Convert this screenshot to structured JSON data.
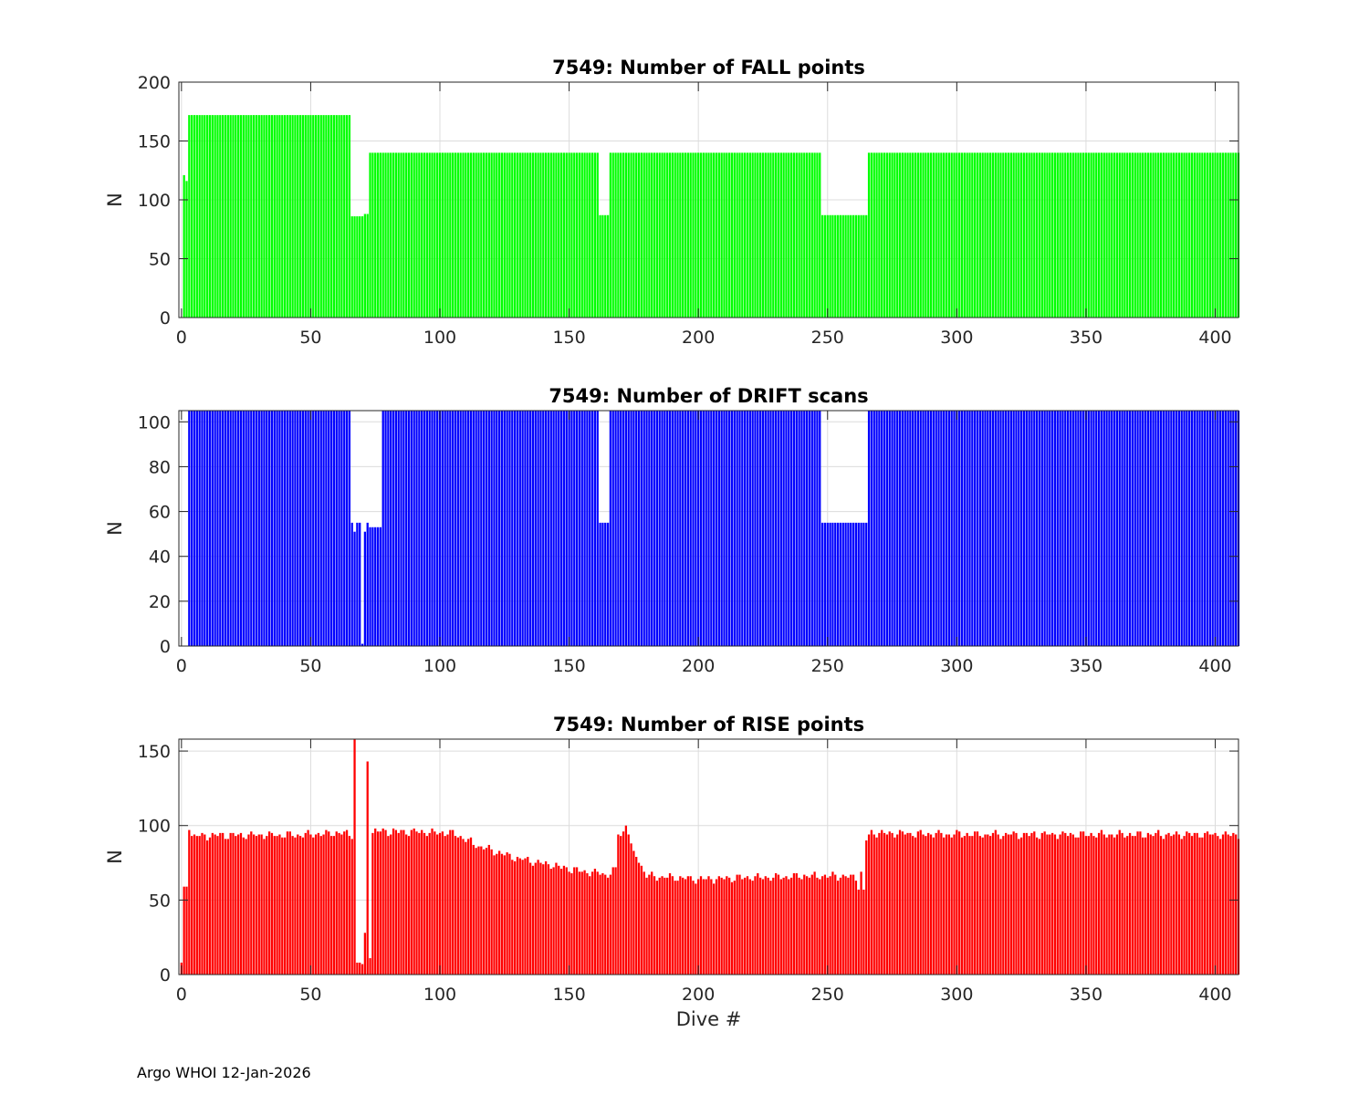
{
  "footer": "Argo WHOI 12-Jan-2026",
  "chart_data": [
    {
      "type": "bar",
      "title": "7549: Number of FALL points",
      "ylabel": "N",
      "xlabel": "",
      "color": "#00ff00",
      "xlim": [
        -1,
        409
      ],
      "ylim": [
        0,
        200
      ],
      "xticks": [
        0,
        50,
        100,
        150,
        200,
        250,
        300,
        350,
        400
      ],
      "yticks": [
        0,
        50,
        100,
        150,
        200
      ],
      "grid": true,
      "x_start": 1,
      "segments": [
        {
          "from": 1,
          "to": 1,
          "value": 121
        },
        {
          "from": 2,
          "to": 2,
          "value": 116
        },
        {
          "from": 3,
          "to": 65,
          "value": 172
        },
        {
          "from": 66,
          "to": 70,
          "value": 86
        },
        {
          "from": 71,
          "to": 72,
          "value": 88
        },
        {
          "from": 73,
          "to": 161,
          "value": 140
        },
        {
          "from": 162,
          "to": 165,
          "value": 87
        },
        {
          "from": 166,
          "to": 247,
          "value": 140
        },
        {
          "from": 248,
          "to": 265,
          "value": 87
        },
        {
          "from": 266,
          "to": 409,
          "value": 140
        }
      ]
    },
    {
      "type": "bar",
      "title": "7549: Number of DRIFT scans",
      "ylabel": "N",
      "xlabel": "",
      "color": "#0000ff",
      "xlim": [
        -1,
        409
      ],
      "ylim": [
        0,
        105
      ],
      "xticks": [
        0,
        50,
        100,
        150,
        200,
        250,
        300,
        350,
        400
      ],
      "yticks": [
        0,
        20,
        40,
        60,
        80,
        100
      ],
      "grid": true,
      "x_start": 3,
      "segments": [
        {
          "from": 3,
          "to": 65,
          "value": 105
        },
        {
          "from": 66,
          "to": 66,
          "value": 55
        },
        {
          "from": 67,
          "to": 67,
          "value": 51
        },
        {
          "from": 68,
          "to": 69,
          "value": 55
        },
        {
          "from": 70,
          "to": 70,
          "value": 1
        },
        {
          "from": 71,
          "to": 71,
          "value": 51
        },
        {
          "from": 72,
          "to": 72,
          "value": 55
        },
        {
          "from": 73,
          "to": 77,
          "value": 53
        },
        {
          "from": 78,
          "to": 161,
          "value": 105
        },
        {
          "from": 162,
          "to": 165,
          "value": 55
        },
        {
          "from": 166,
          "to": 247,
          "value": 105
        },
        {
          "from": 248,
          "to": 265,
          "value": 55
        },
        {
          "from": 266,
          "to": 409,
          "value": 105
        }
      ]
    },
    {
      "type": "bar",
      "title": "7549: Number of RISE points",
      "ylabel": "N",
      "xlabel": "Dive #",
      "color": "#ff0000",
      "xlim": [
        -1,
        409
      ],
      "ylim": [
        0,
        158
      ],
      "xticks": [
        0,
        50,
        100,
        150,
        200,
        250,
        300,
        350,
        400
      ],
      "yticks": [
        0,
        50,
        100,
        150
      ],
      "grid": true,
      "x_start": 1,
      "points": [
        [
          0,
          8
        ],
        [
          1,
          59
        ],
        [
          2,
          59
        ],
        [
          3,
          97
        ],
        [
          67,
          158
        ],
        [
          68,
          8
        ],
        [
          69,
          8
        ],
        [
          70,
          7
        ],
        [
          71,
          28
        ],
        [
          72,
          143
        ],
        [
          73,
          11
        ],
        [
          169,
          94
        ],
        [
          170,
          93
        ],
        [
          171,
          96
        ],
        [
          172,
          100
        ],
        [
          173,
          94
        ],
        [
          174,
          88
        ],
        [
          175,
          83
        ],
        [
          262,
          57
        ],
        [
          263,
          69
        ],
        [
          264,
          57
        ],
        [
          265,
          90
        ],
        [
          266,
          94
        ]
      ],
      "trend": [
        [
          4,
          93
        ],
        [
          50,
          94
        ],
        [
          60,
          95
        ],
        [
          66,
          94
        ],
        [
          75,
          96
        ],
        [
          90,
          96
        ],
        [
          105,
          95
        ],
        [
          115,
          86
        ],
        [
          130,
          78
        ],
        [
          150,
          71
        ],
        [
          165,
          67
        ],
        [
          176,
          80
        ],
        [
          180,
          66
        ],
        [
          200,
          64
        ],
        [
          220,
          65
        ],
        [
          240,
          66
        ],
        [
          255,
          66
        ],
        [
          261,
          65
        ],
        [
          266,
          95
        ],
        [
          300,
          94
        ],
        [
          409,
          94
        ]
      ]
    }
  ]
}
